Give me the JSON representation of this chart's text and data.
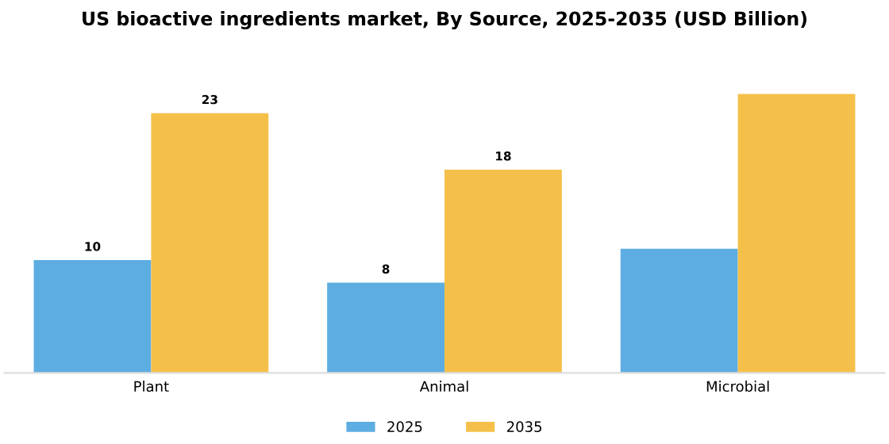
{
  "chart_data": {
    "type": "bar",
    "title": "US bioactive ingredients market, By Source, 2025-2035 (USD Billion)",
    "categories": [
      "Plant",
      "Animal",
      "Microbial"
    ],
    "series": [
      {
        "name": "2025",
        "color": "#5dade2",
        "values": [
          10,
          8,
          11
        ],
        "value_labels": [
          "10",
          "8",
          null
        ]
      },
      {
        "name": "2035",
        "color": "#f5c04a",
        "values": [
          23,
          18,
          24.7
        ],
        "value_labels": [
          "23",
          "18",
          null
        ]
      }
    ],
    "tick_labels": "x",
    "grid": false,
    "legend": "bottom"
  }
}
